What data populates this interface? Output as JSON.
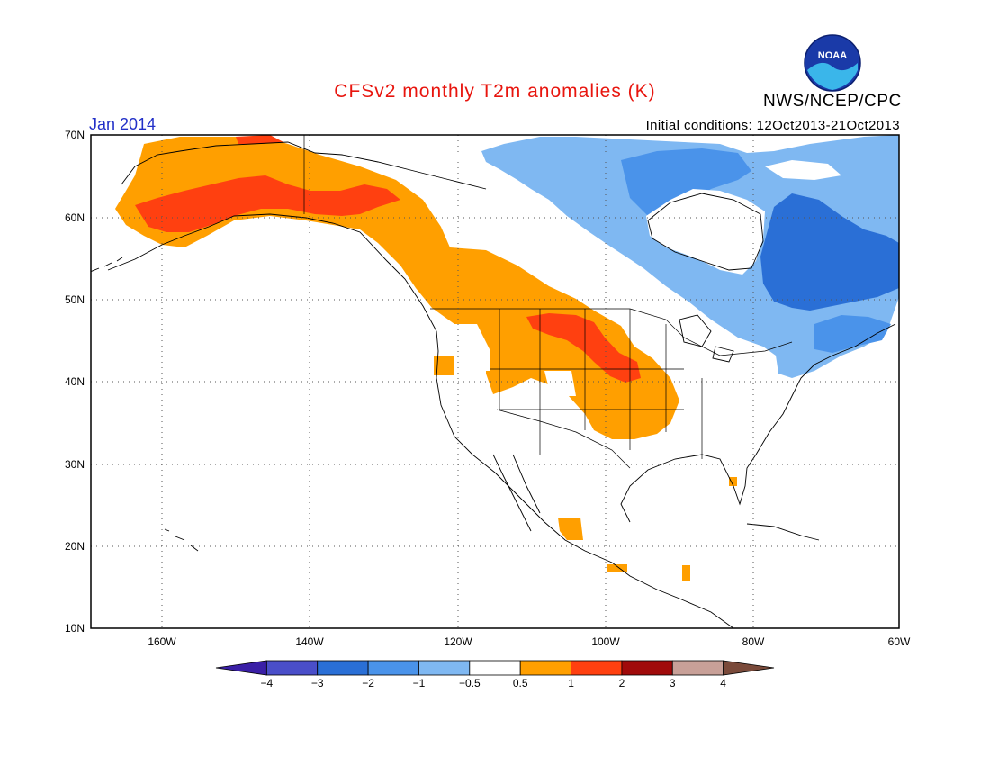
{
  "title": "CFSv2 monthly T2m anomalies (K)",
  "organization": "NWS/NCEP/CPC",
  "logo_text": "NOAA",
  "forecast_month": "Jan 2014",
  "initial_conditions": "Initial conditions: 12Oct2013-21Oct2013",
  "latitude_labels": [
    "70N",
    "60N",
    "50N",
    "40N",
    "30N",
    "20N",
    "10N"
  ],
  "longitude_labels": [
    "160W",
    "140W",
    "120W",
    "100W",
    "80W",
    "60W"
  ],
  "colorbar": {
    "labels": [
      "−4",
      "−3",
      "−2",
      "−1",
      "−0.5",
      "0.5",
      "1",
      "2",
      "3",
      "4"
    ],
    "colors": [
      "#3a1fa6",
      "#4a4ec9",
      "#2a6fd6",
      "#4a93ea",
      "#7fb8f2",
      "#ffffff",
      "#ff9f00",
      "#ff4010",
      "#a00a0a",
      "#c8a098",
      "#7a4a3a"
    ]
  },
  "map_extent": {
    "lon_min": -170,
    "lon_max": -60,
    "lat_min": 10,
    "lat_max": 70
  },
  "anomaly_regions": [
    {
      "name": "alaska-warm",
      "level": "+0.5 to +1 K"
    },
    {
      "name": "alaska-core-warm",
      "level": "+1 to +2 K"
    },
    {
      "name": "northwest-warm",
      "level": "+0.5 to +1 K"
    },
    {
      "name": "central-plains-warm",
      "level": "+0.5 to +1 K"
    },
    {
      "name": "central-plains-core-warm",
      "level": "+1 to +2 K"
    },
    {
      "name": "canada-cold",
      "level": "-0.5 to -1 K"
    },
    {
      "name": "quebec-labrador-cold",
      "level": "-1 to -2 K"
    },
    {
      "name": "mexico-warm",
      "level": "+0.5 to +1 K"
    }
  ]
}
